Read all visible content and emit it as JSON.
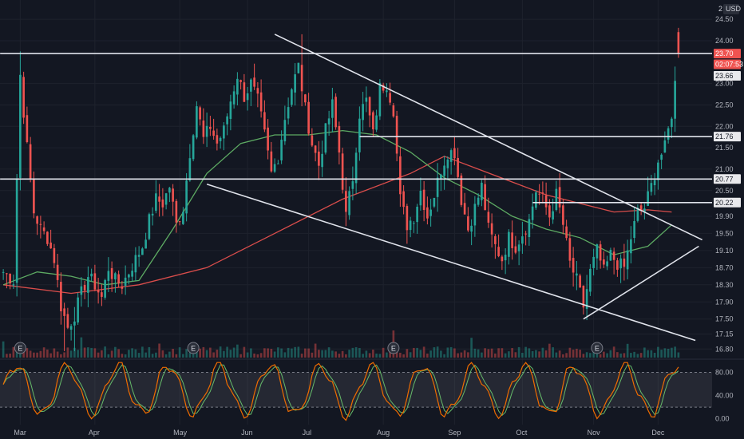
{
  "header": {
    "pane_number": "2",
    "currency": "USD"
  },
  "chart_data": {
    "type": "candlestick",
    "price_axis": {
      "ylim": [
        16.6,
        24.95
      ],
      "ticks": [
        24.5,
        24.0,
        23.0,
        22.5,
        22.0,
        21.5,
        21.0,
        20.5,
        19.9,
        19.5,
        19.1,
        18.7,
        18.3,
        17.9,
        17.5,
        17.15,
        16.8
      ]
    },
    "time_axis": {
      "labels": [
        "Mar",
        "Apr",
        "May",
        "Jun",
        "Jul",
        "Aug",
        "Sep",
        "Oct",
        "Nov",
        "Dec"
      ],
      "total_bars": 200,
      "label_bars": [
        5,
        27,
        52,
        72,
        90,
        112,
        133,
        153,
        174,
        193
      ]
    },
    "price_path": {
      "anchors": [
        [
          0,
          18.6
        ],
        [
          3,
          18.4
        ],
        [
          5,
          23.2
        ],
        [
          7,
          21.5
        ],
        [
          9,
          20.0
        ],
        [
          11,
          19.6
        ],
        [
          13,
          19.4
        ],
        [
          15,
          18.9
        ],
        [
          17,
          17.8
        ],
        [
          19,
          17.3
        ],
        [
          21,
          17.6
        ],
        [
          23,
          18.1
        ],
        [
          25,
          18.5
        ],
        [
          27,
          18.3
        ],
        [
          29,
          18.0
        ],
        [
          31,
          18.7
        ],
        [
          33,
          18.4
        ],
        [
          35,
          18.3
        ],
        [
          37,
          18.6
        ],
        [
          39,
          18.9
        ],
        [
          41,
          19.2
        ],
        [
          43,
          19.8
        ],
        [
          45,
          20.3
        ],
        [
          47,
          20.2
        ],
        [
          49,
          20.6
        ],
        [
          51,
          19.7
        ],
        [
          53,
          20.1
        ],
        [
          55,
          21.4
        ],
        [
          57,
          22.5
        ],
        [
          59,
          21.7
        ],
        [
          61,
          22.0
        ],
        [
          63,
          21.6
        ],
        [
          65,
          21.9
        ],
        [
          67,
          22.6
        ],
        [
          69,
          23.2
        ],
        [
          71,
          22.7
        ],
        [
          73,
          23.0
        ],
        [
          75,
          22.6
        ],
        [
          77,
          21.8
        ],
        [
          79,
          20.9
        ],
        [
          81,
          21.3
        ],
        [
          83,
          22.2
        ],
        [
          85,
          22.9
        ],
        [
          87,
          23.4
        ],
        [
          89,
          22.4
        ],
        [
          91,
          21.6
        ],
        [
          93,
          21.1
        ],
        [
          95,
          21.9
        ],
        [
          97,
          22.5
        ],
        [
          99,
          21.4
        ],
        [
          101,
          19.9
        ],
        [
          103,
          20.8
        ],
        [
          105,
          22.3
        ],
        [
          107,
          22.6
        ],
        [
          109,
          21.8
        ],
        [
          111,
          22.9
        ],
        [
          113,
          23.0
        ],
        [
          115,
          22.4
        ],
        [
          117,
          20.3
        ],
        [
          119,
          19.7
        ],
        [
          121,
          19.9
        ],
        [
          123,
          20.5
        ],
        [
          125,
          19.9
        ],
        [
          127,
          20.4
        ],
        [
          129,
          21.0
        ],
        [
          131,
          21.4
        ],
        [
          133,
          21.4
        ],
        [
          135,
          20.3
        ],
        [
          137,
          19.6
        ],
        [
          139,
          20.1
        ],
        [
          141,
          20.6
        ],
        [
          143,
          19.6
        ],
        [
          145,
          19.2
        ],
        [
          147,
          18.9
        ],
        [
          149,
          19.4
        ],
        [
          151,
          19.2
        ],
        [
          153,
          19.5
        ],
        [
          155,
          19.8
        ],
        [
          157,
          20.5
        ],
        [
          159,
          20.3
        ],
        [
          161,
          19.9
        ],
        [
          163,
          20.4
        ],
        [
          165,
          19.7
        ],
        [
          167,
          18.8
        ],
        [
          169,
          18.4
        ],
        [
          171,
          17.8
        ],
        [
          173,
          18.6
        ],
        [
          175,
          19.1
        ],
        [
          177,
          18.6
        ],
        [
          179,
          19.0
        ],
        [
          181,
          18.8
        ],
        [
          183,
          18.7
        ],
        [
          185,
          19.4
        ],
        [
          187,
          20.0
        ],
        [
          189,
          20.1
        ],
        [
          191,
          20.6
        ],
        [
          193,
          21.2
        ],
        [
          195,
          21.5
        ],
        [
          197,
          22.3
        ],
        [
          199,
          23.7
        ]
      ]
    },
    "highlighted_candle": {
      "bar": 199,
      "open": 24.2,
      "high": 24.3,
      "low": 23.6,
      "close": 23.7
    },
    "moving_averages": [
      {
        "color": "#ef5350",
        "points": [
          [
            0,
            18.3
          ],
          [
            20,
            18.1
          ],
          [
            40,
            18.3
          ],
          [
            60,
            18.7
          ],
          [
            80,
            19.5
          ],
          [
            100,
            20.3
          ],
          [
            120,
            20.9
          ],
          [
            130,
            21.3
          ],
          [
            140,
            21.0
          ],
          [
            150,
            20.7
          ],
          [
            160,
            20.4
          ],
          [
            170,
            20.2
          ],
          [
            180,
            20.0
          ],
          [
            190,
            20.05
          ],
          [
            197,
            20.0
          ]
        ]
      },
      {
        "color": "#66bb6a",
        "points": [
          [
            0,
            18.3
          ],
          [
            10,
            18.6
          ],
          [
            20,
            18.5
          ],
          [
            30,
            18.3
          ],
          [
            40,
            18.4
          ],
          [
            50,
            19.6
          ],
          [
            60,
            20.9
          ],
          [
            70,
            21.6
          ],
          [
            80,
            21.8
          ],
          [
            90,
            21.8
          ],
          [
            100,
            21.9
          ],
          [
            110,
            21.8
          ],
          [
            120,
            21.4
          ],
          [
            130,
            20.8
          ],
          [
            140,
            20.4
          ],
          [
            150,
            19.9
          ],
          [
            160,
            19.6
          ],
          [
            170,
            19.4
          ],
          [
            180,
            19.0
          ],
          [
            190,
            19.2
          ],
          [
            197,
            19.7
          ]
        ]
      }
    ],
    "horizontal_lines": [
      {
        "price": 23.7,
        "from_bar": 0,
        "to_bar": 200
      },
      {
        "price": 21.76,
        "from_bar": 106,
        "to_bar": 200
      },
      {
        "price": 20.77,
        "from_bar": 0,
        "to_bar": 200
      },
      {
        "price": 20.22,
        "from_bar": 157,
        "to_bar": 200
      }
    ],
    "trend_lines": [
      {
        "from": [
          80,
          24.15
        ],
        "to": [
          206,
          19.35
        ]
      },
      {
        "from": [
          60,
          20.65
        ],
        "to": [
          204,
          17.0
        ]
      },
      {
        "from": [
          171,
          17.5
        ],
        "to": [
          205,
          19.2
        ]
      }
    ],
    "price_labels": [
      {
        "text": "23.70",
        "price": 23.7,
        "bg": "#ef5350",
        "fg": "#ffffff"
      },
      {
        "text": "02:07:53",
        "price": 23.45,
        "bg": "#ef5350",
        "fg": "#ffffff"
      },
      {
        "text": "23.66",
        "price": 23.18,
        "bg": "#e9e9ec",
        "fg": "#131722"
      },
      {
        "text": "21.76",
        "price": 21.76,
        "bg": "#e9e9ec",
        "fg": "#131722"
      },
      {
        "text": "20.77",
        "price": 20.77,
        "bg": "#e9e9ec",
        "fg": "#131722"
      },
      {
        "text": "20.22",
        "price": 20.22,
        "bg": "#e9e9ec",
        "fg": "#131722"
      }
    ],
    "earnings_markers": {
      "label": "E",
      "bars": [
        5,
        56,
        115,
        175
      ]
    },
    "oscillator": {
      "ylim": [
        -10,
        100
      ],
      "ticks": [
        80.0,
        40.0,
        0.0
      ],
      "band": [
        20,
        80
      ],
      "k_color": "#ef6c00",
      "d_color": "#66bb6a"
    },
    "colors": {
      "up": "#26a69a",
      "down": "#ef5350",
      "background": "#131722",
      "grid": "#1e222d",
      "line": "#e0e3eb"
    }
  }
}
